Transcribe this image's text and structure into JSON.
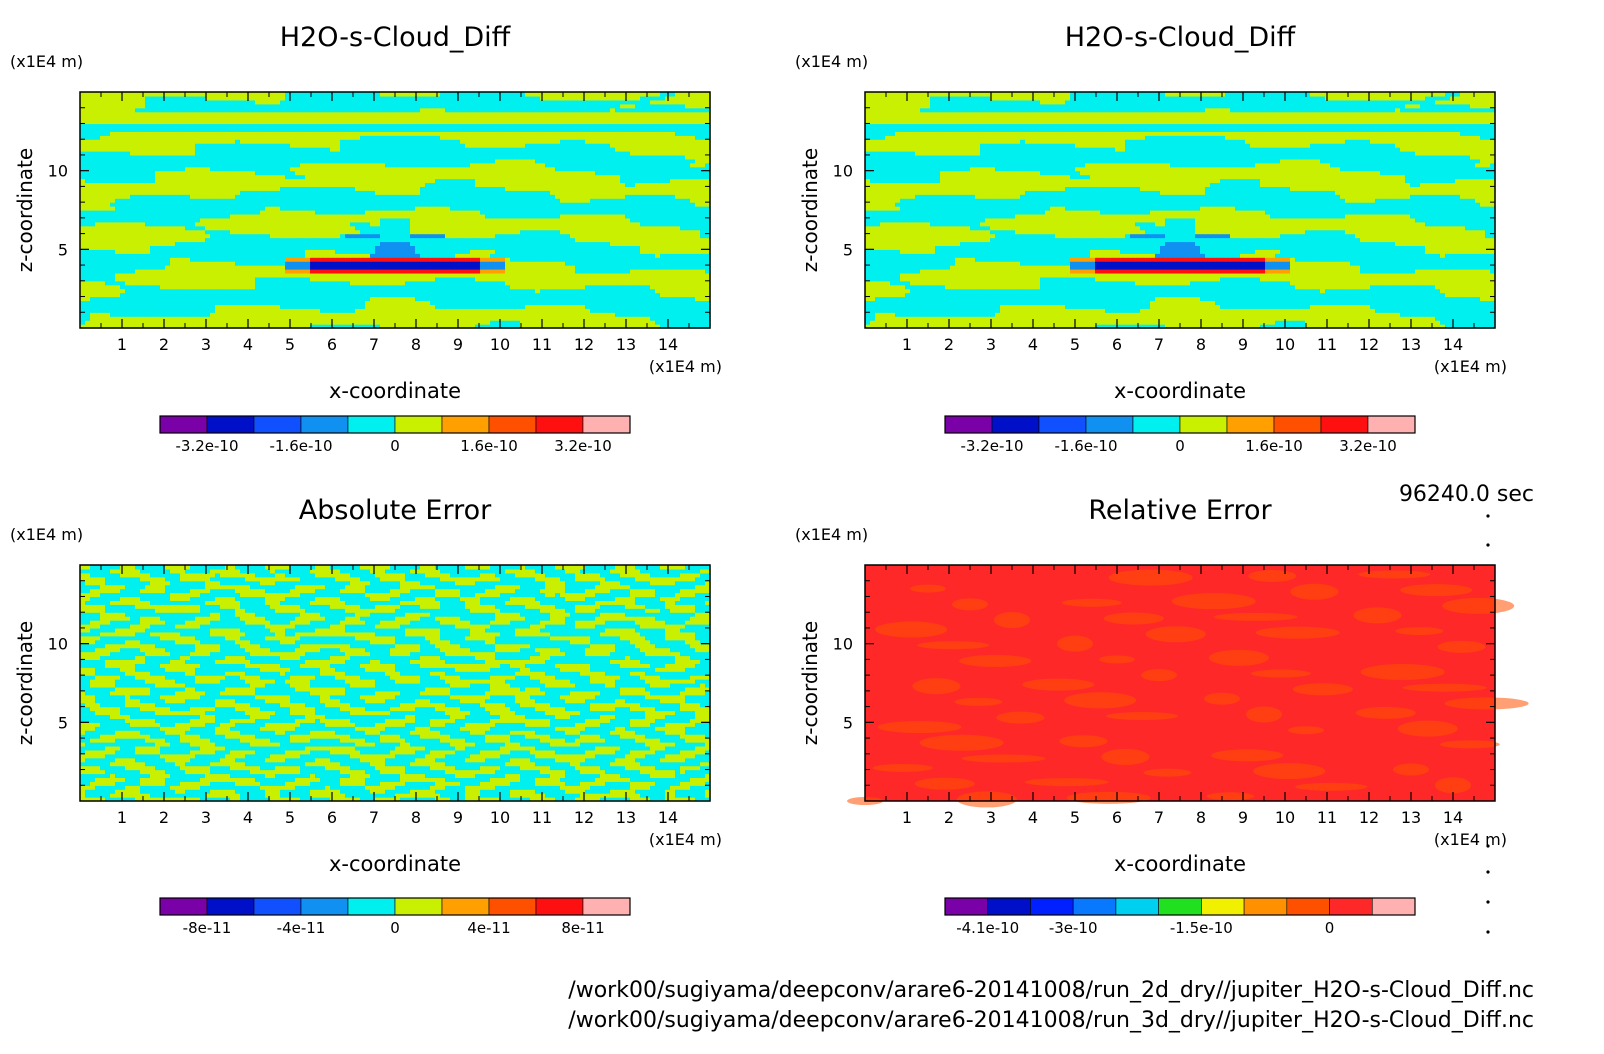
{
  "timestamp": "96240.0 sec",
  "footer": {
    "line1": "/work00/sugiyama/deepconv/arare6-20141008/run_2d_dry//jupiter_H2O-s-Cloud_Diff.nc",
    "line2": "/work00/sugiyama/deepconv/arare6-20141008/run_3d_dry//jupiter_H2O-s-Cloud_Diff.nc"
  },
  "chart_data": [
    {
      "type": "heatmap",
      "title": "H2O-s-Cloud_Diff",
      "xlabel": "x-coordinate",
      "ylabel": "z-coordinate",
      "xunit": "(x1E4 m)",
      "yunit": "(x1E4 m)",
      "xlim": [
        0,
        15
      ],
      "ylim": [
        0,
        15
      ],
      "xticks": [
        "1",
        "2",
        "3",
        "4",
        "5",
        "6",
        "7",
        "8",
        "9",
        "10",
        "11",
        "12",
        "13",
        "14"
      ],
      "yticks": [
        "5",
        "10"
      ],
      "pattern": "bands",
      "colors": [
        "#7a00a8",
        "#0010c8",
        "#1050ff",
        "#1090f0",
        "#00f0f0",
        "#c8f000",
        "#ffa000",
        "#ff5000",
        "#ff1010",
        "#ffb0b0"
      ],
      "colorbar_labels": [
        "-3.2e-10",
        "-1.6e-10",
        "0",
        "1.6e-10",
        "3.2e-10"
      ]
    },
    {
      "type": "heatmap",
      "title": "H2O-s-Cloud_Diff",
      "xlabel": "x-coordinate",
      "ylabel": "z-coordinate",
      "xunit": "(x1E4 m)",
      "yunit": "(x1E4 m)",
      "xlim": [
        0,
        15
      ],
      "ylim": [
        0,
        15
      ],
      "xticks": [
        "1",
        "2",
        "3",
        "4",
        "5",
        "6",
        "7",
        "8",
        "9",
        "10",
        "11",
        "12",
        "13",
        "14"
      ],
      "yticks": [
        "5",
        "10"
      ],
      "pattern": "bands",
      "colors": [
        "#7a00a8",
        "#0010c8",
        "#1050ff",
        "#1090f0",
        "#00f0f0",
        "#c8f000",
        "#ffa000",
        "#ff5000",
        "#ff1010",
        "#ffb0b0"
      ],
      "colorbar_labels": [
        "-3.2e-10",
        "-1.6e-10",
        "0",
        "1.6e-10",
        "3.2e-10"
      ]
    },
    {
      "type": "heatmap",
      "title": "Absolute Error",
      "xlabel": "x-coordinate",
      "ylabel": "z-coordinate",
      "xunit": "(x1E4 m)",
      "yunit": "(x1E4 m)",
      "xlim": [
        0,
        15
      ],
      "ylim": [
        0,
        15
      ],
      "xticks": [
        "1",
        "2",
        "3",
        "4",
        "5",
        "6",
        "7",
        "8",
        "9",
        "10",
        "11",
        "12",
        "13",
        "14"
      ],
      "yticks": [
        "5",
        "10"
      ],
      "pattern": "noise",
      "colors": [
        "#7a00a8",
        "#0010c8",
        "#1050ff",
        "#1090f0",
        "#00f0f0",
        "#c8f000",
        "#ffa000",
        "#ff5000",
        "#ff1010",
        "#ffb0b0"
      ],
      "colorbar_labels": [
        "-8e-11",
        "-4e-11",
        "0",
        "4e-11",
        "8e-11"
      ]
    },
    {
      "type": "heatmap",
      "title": "Relative Error",
      "xlabel": "x-coordinate",
      "ylabel": "z-coordinate",
      "xunit": "(x1E4 m)",
      "yunit": "(x1E4 m)",
      "xlim": [
        0,
        15
      ],
      "ylim": [
        0,
        15
      ],
      "xticks": [
        "1",
        "2",
        "3",
        "4",
        "5",
        "6",
        "7",
        "8",
        "9",
        "10",
        "11",
        "12",
        "13",
        "14"
      ],
      "yticks": [
        "5",
        "10"
      ],
      "pattern": "uniform",
      "colors": [
        "#7a00a8",
        "#0010c8",
        "#0020ff",
        "#0878ff",
        "#00d0f0",
        "#20e020",
        "#f0f000",
        "#ff9000",
        "#ff5000",
        "#ff2828",
        "#ffb0b0"
      ],
      "colorbar_labels": [
        "-4.1e-10",
        "-3e-10",
        "-1.5e-10",
        "0"
      ]
    }
  ]
}
